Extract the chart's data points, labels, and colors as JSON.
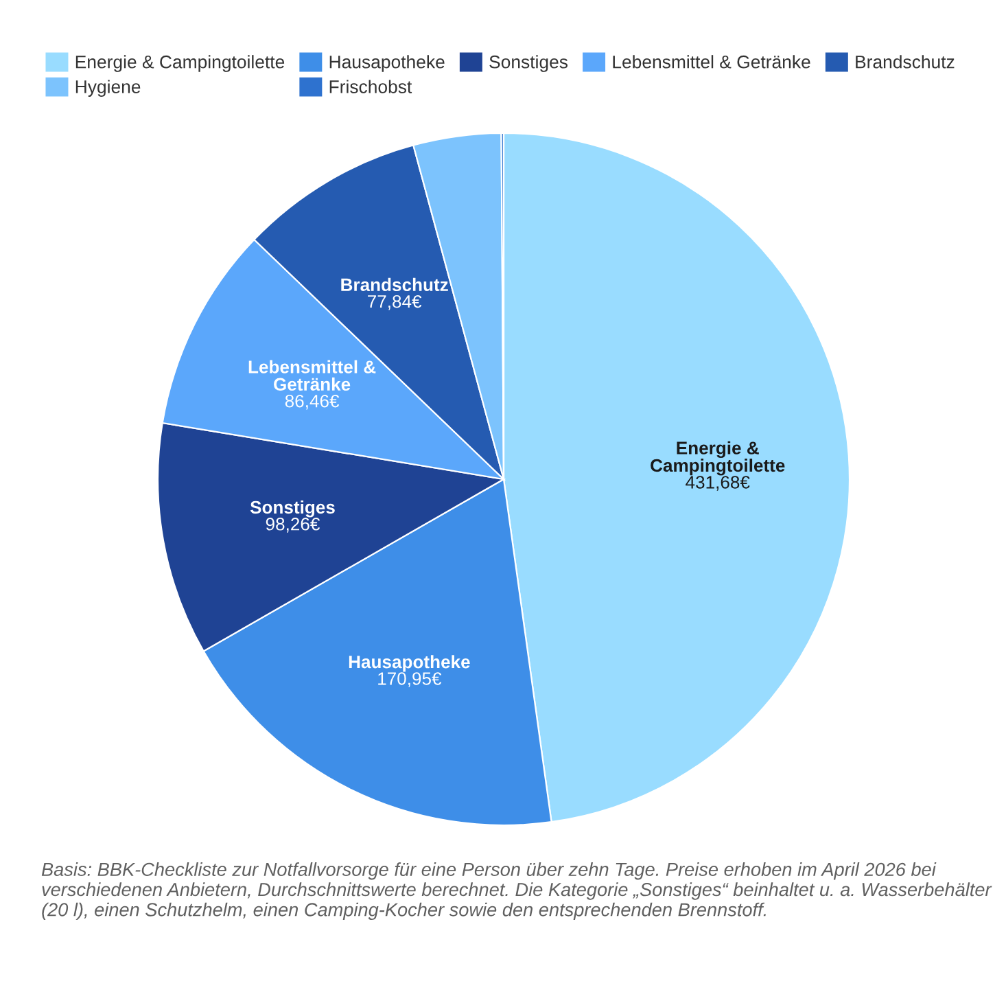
{
  "chart_data": {
    "type": "pie",
    "categories": [
      "Energie & Campingtoilette",
      "Hausapotheke",
      "Sonstiges",
      "Lebensmittel & Getränke",
      "Brandschutz",
      "Hygiene",
      "Frischobst"
    ],
    "values": [
      431.68,
      170.95,
      98.26,
      86.46,
      77.84,
      37,
      1
    ],
    "colors": [
      "#99dcff",
      "#3e8ee8",
      "#1f4394",
      "#5ba7fb",
      "#255bb1",
      "#7cc3fd",
      "#2e72cf"
    ],
    "value_labels": [
      "Energie &\nCampingtoilette\n431,68€",
      "Hausapotheke\n170,95€",
      "Sonstiges\n98,26€",
      "Lebensmittel &\nGetränke\n86,46€",
      "Brandschutz\n77,84€",
      null,
      null
    ],
    "legend": "top left",
    "annotations": [
      "Basis: BBK-Checkliste zur Notfallvorsorge für eine Person über zehn Tage. Preise erhoben im April 2026 bei verschiedenen Anbietern, Durchschnittswerte berechnet. Die Kategorie „Sonstiges“ beinhaltet u. a. Wasserbehälter (20 l), einen Schutzhelm, einen Camping-Kocher sowie den entsprechenden Brennstoff."
    ]
  }
}
